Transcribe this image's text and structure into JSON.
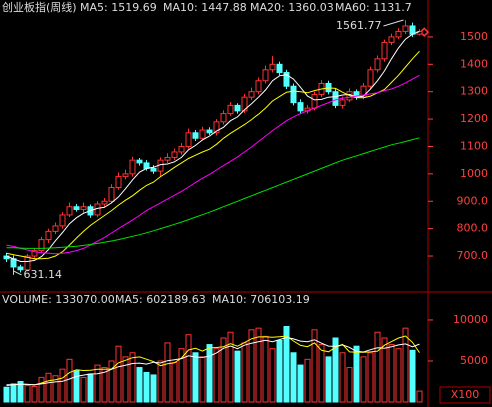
{
  "chart_data": [
    {
      "type": "candlestick",
      "title": "创业板指(周线)",
      "up_color": "#ff3232",
      "down_color": "#54ffff",
      "open": [
        700,
        690,
        660,
        650,
        700,
        720,
        760,
        790,
        810,
        850,
        880,
        870,
        880,
        850,
        890,
        900,
        950,
        990,
        1000,
        1050,
        1040,
        1020,
        1010,
        1050,
        1060,
        1080,
        1100,
        1150,
        1130,
        1160,
        1150,
        1190,
        1220,
        1250,
        1230,
        1280,
        1300,
        1340,
        1380,
        1400,
        1370,
        1320,
        1260,
        1230,
        1240,
        1290,
        1330,
        1300,
        1250,
        1270,
        1300,
        1280,
        1320,
        1380,
        1420,
        1480,
        1500,
        1520,
        1540,
        1510
      ],
      "high": [
        712,
        702,
        668,
        708,
        728,
        770,
        800,
        822,
        860,
        895,
        890,
        895,
        888,
        900,
        912,
        962,
        1005,
        1015,
        1062,
        1058,
        1050,
        1032,
        1060,
        1075,
        1092,
        1112,
        1165,
        1160,
        1172,
        1170,
        1200,
        1232,
        1262,
        1258,
        1292,
        1315,
        1352,
        1395,
        1430,
        1410,
        1380,
        1330,
        1272,
        1252,
        1300,
        1342,
        1340,
        1310,
        1282,
        1312,
        1308,
        1332,
        1392,
        1432,
        1490,
        1512,
        1532,
        1561.77,
        1552,
        1528
      ],
      "low": [
        678,
        631.14,
        640,
        645,
        690,
        712,
        748,
        780,
        800,
        842,
        862,
        858,
        840,
        842,
        880,
        892,
        942,
        980,
        990,
        1030,
        1012,
        1000,
        990,
        1040,
        1050,
        1070,
        1092,
        1120,
        1122,
        1142,
        1140,
        1180,
        1212,
        1220,
        1222,
        1270,
        1290,
        1330,
        1370,
        1360,
        1310,
        1250,
        1218,
        1220,
        1232,
        1280,
        1290,
        1240,
        1238,
        1262,
        1270,
        1272,
        1312,
        1370,
        1410,
        1470,
        1492,
        1510,
        1500,
        1505
      ],
      "close": [
        690,
        660,
        650,
        700,
        720,
        760,
        790,
        810,
        850,
        880,
        870,
        880,
        850,
        890,
        900,
        950,
        990,
        1000,
        1050,
        1040,
        1020,
        1010,
        1050,
        1060,
        1080,
        1100,
        1150,
        1130,
        1160,
        1150,
        1190,
        1220,
        1250,
        1230,
        1280,
        1300,
        1340,
        1380,
        1400,
        1370,
        1320,
        1260,
        1230,
        1240,
        1290,
        1330,
        1300,
        1250,
        1270,
        1300,
        1280,
        1320,
        1380,
        1420,
        1480,
        1500,
        1520,
        1540,
        1510,
        1520
      ],
      "series": [
        {
          "name": "MA5: 1519.69",
          "color": "#ffffff",
          "values": [
            700,
            690,
            680,
            680,
            684,
            698,
            724,
            756,
            786,
            818,
            840,
            856,
            866,
            874,
            878,
            894,
            916,
            946,
            978,
            1006,
            1020,
            1024,
            1034,
            1036,
            1044,
            1060,
            1088,
            1104,
            1124,
            1138,
            1156,
            1170,
            1194,
            1208,
            1234,
            1256,
            1280,
            1306,
            1340,
            1358,
            1362,
            1346,
            1316,
            1284,
            1270,
            1272,
            1280,
            1282,
            1288,
            1290,
            1280,
            1284,
            1310,
            1340,
            1376,
            1420,
            1460,
            1492,
            1510,
            1519.69
          ]
        },
        {
          "name": "MA10: 1447.88",
          "color": "#ffff00",
          "values": [
            710,
            705,
            700,
            695,
            690,
            690,
            692,
            700,
            716,
            740,
            766,
            790,
            812,
            830,
            848,
            866,
            886,
            904,
            920,
            940,
            958,
            970,
            990,
            1006,
            1024,
            1040,
            1056,
            1068,
            1080,
            1090,
            1108,
            1130,
            1148,
            1164,
            1180,
            1198,
            1218,
            1240,
            1266,
            1282,
            1298,
            1302,
            1300,
            1296,
            1304,
            1310,
            1314,
            1312,
            1298,
            1286,
            1278,
            1278,
            1284,
            1296,
            1308,
            1334,
            1360,
            1390,
            1420,
            1447.88
          ]
        },
        {
          "name": "MA20: 1360.03",
          "color": "#ff00ff",
          "values": [
            740,
            735,
            728,
            722,
            716,
            712,
            710,
            708,
            710,
            714,
            720,
            728,
            740,
            754,
            768,
            784,
            800,
            816,
            832,
            848,
            866,
            880,
            894,
            908,
            922,
            936,
            952,
            968,
            984,
            998,
            1014,
            1030,
            1046,
            1062,
            1080,
            1098,
            1118,
            1138,
            1158,
            1176,
            1194,
            1208,
            1220,
            1230,
            1240,
            1250,
            1260,
            1270,
            1276,
            1280,
            1284,
            1288,
            1292,
            1296,
            1304,
            1310,
            1320,
            1332,
            1346,
            1360.03
          ]
        },
        {
          "name": "MA60: 1131.7",
          "color": "#00e000",
          "values": [
            730,
            730,
            729,
            728,
            728,
            728,
            729,
            730,
            732,
            734,
            736,
            739,
            742,
            746,
            750,
            755,
            760,
            766,
            772,
            778,
            785,
            792,
            800,
            808,
            816,
            824,
            833,
            842,
            851,
            860,
            870,
            880,
            890,
            900,
            910,
            920,
            930,
            940,
            950,
            960,
            970,
            980,
            990,
            1000,
            1010,
            1020,
            1030,
            1040,
            1050,
            1058,
            1066,
            1074,
            1082,
            1090,
            1098,
            1106,
            1112,
            1118,
            1125,
            1131.7
          ]
        }
      ],
      "ylim": [
        576,
        1580
      ],
      "yticks": [
        {
          "value": 700,
          "label": "700.0"
        },
        {
          "value": 800,
          "label": "800.0"
        },
        {
          "value": 900,
          "label": "900.0"
        },
        1000,
        1100,
        1200,
        1300,
        1400,
        1500
      ],
      "annotations": [
        "1561.77",
        "631.14"
      ]
    },
    {
      "type": "volume",
      "title": "VOLUME: 133070.00",
      "unit": "X100",
      "values": [
        1800,
        2200,
        2500,
        2000,
        1900,
        3000,
        3500,
        3200,
        4000,
        5200,
        3800,
        3000,
        3400,
        4500,
        4200,
        5000,
        6800,
        5500,
        6000,
        4200,
        3600,
        3300,
        5000,
        7200,
        4800,
        6500,
        8200,
        6000,
        5500,
        7000,
        6500,
        7800,
        8500,
        6200,
        7200,
        8800,
        9000,
        8000,
        6500,
        7500,
        9200,
        6000,
        4500,
        5200,
        8800,
        7000,
        5500,
        7800,
        6000,
        4200,
        6800,
        5500,
        6000,
        8500,
        7800,
        7000,
        6500,
        9000,
        6300,
        1330.7
      ],
      "series": [
        {
          "name": "MA5: 602189.63",
          "color": "#ffff00",
          "values": [
            2000,
            2100,
            2200,
            2150,
            2080,
            2320,
            2580,
            2720,
            2920,
            3580,
            3940,
            3840,
            3880,
            3980,
            3980,
            4020,
            4780,
            5080,
            5400,
            5500,
            5220,
            4920,
            4420,
            4660,
            4780,
            5360,
            6340,
            6540,
            6200,
            6600,
            6640,
            6740,
            7100,
            6800,
            7240,
            7700,
            7940,
            7940,
            7900,
            7960,
            8040,
            7440,
            6900,
            6740,
            7200,
            6300,
            6120,
            6660,
            7020,
            6100,
            6060,
            6060,
            6100,
            6200,
            6920,
            7360,
            7800,
            8040,
            7260,
            6021.9
          ]
        },
        {
          "name": "MA10: 706103.19",
          "color": "#ffffff",
          "values": [
            2100,
            2100,
            2150,
            2150,
            2100,
            2200,
            2350,
            2450,
            2520,
            2800,
            3120,
            3280,
            3420,
            3450,
            3620,
            3980,
            4300,
            4480,
            4690,
            4740,
            4620,
            4850,
            4750,
            5030,
            5140,
            5290,
            5630,
            5480,
            5430,
            5600,
            5990,
            6540,
            6820,
            6500,
            6920,
            7170,
            7340,
            7520,
            7350,
            7600,
            7870,
            7690,
            7420,
            7350,
            7580,
            7170,
            6810,
            6780,
            6960,
            6650,
            6180,
            6090,
            6380,
            6610,
            6560,
            6730,
            6960,
            7080,
            6730,
            7061.03
          ]
        }
      ],
      "ylim": [
        0,
        11700
      ],
      "yticks": [
        5000,
        10000
      ]
    }
  ]
}
